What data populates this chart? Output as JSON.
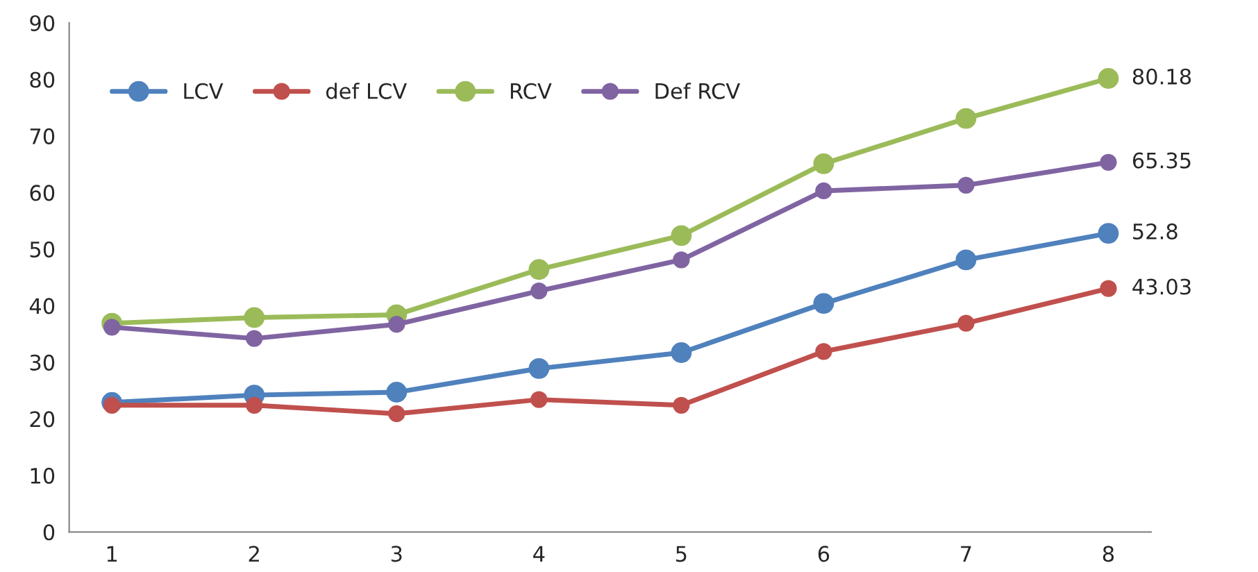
{
  "chart_data": {
    "type": "line",
    "categories": [
      "1",
      "2",
      "3",
      "4",
      "5",
      "6",
      "7",
      "8"
    ],
    "series": [
      {
        "name": "LCV",
        "color": "#4f81bd",
        "values": [
          22.9,
          24.2,
          24.7,
          28.9,
          31.7,
          40.4,
          48.1,
          52.8
        ],
        "value_labels": [
          null,
          null,
          null,
          null,
          null,
          null,
          null,
          "52.8"
        ]
      },
      {
        "name": "def LCV",
        "color": "#c0504d",
        "values": [
          22.4,
          22.4,
          20.9,
          23.4,
          22.4,
          31.9,
          36.9,
          43.03
        ],
        "value_labels": [
          null,
          null,
          null,
          null,
          null,
          null,
          null,
          "43.03"
        ]
      },
      {
        "name": "RCV",
        "color": "#9bbb59",
        "values": [
          36.9,
          37.9,
          38.4,
          46.4,
          52.4,
          65.1,
          73.1,
          80.18
        ],
        "value_labels": [
          null,
          null,
          null,
          null,
          null,
          null,
          null,
          "80.18"
        ]
      },
      {
        "name": "Def RCV",
        "color": "#8064a2",
        "values": [
          36.2,
          34.2,
          36.7,
          42.6,
          48.1,
          60.3,
          61.3,
          65.35
        ],
        "value_labels": [
          null,
          null,
          null,
          null,
          null,
          null,
          null,
          "65.35"
        ]
      }
    ],
    "ylim": [
      0,
      90
    ],
    "yticks": [
      0,
      10,
      20,
      30,
      40,
      50,
      60,
      70,
      80,
      90
    ],
    "grid": false,
    "legend": "top",
    "marker": "circle",
    "line_style": "solid"
  }
}
